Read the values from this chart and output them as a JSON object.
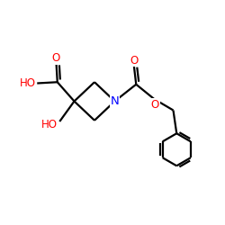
{
  "bg_color": "#ffffff",
  "bond_color": "#000000",
  "N_color": "#0000ff",
  "O_color": "#ff0000",
  "line_width": 1.6,
  "font_size_atom": 8.5,
  "fig_size": [
    2.5,
    2.5
  ],
  "dpi": 100,
  "xlim": [
    0,
    10
  ],
  "ylim": [
    0,
    10
  ]
}
